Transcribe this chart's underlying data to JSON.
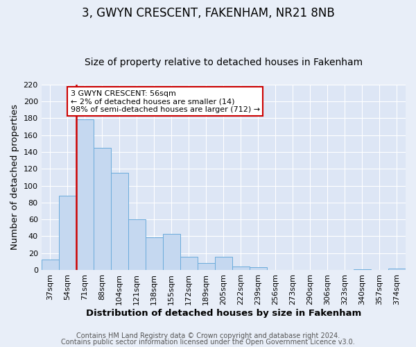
{
  "title": "3, GWYN CRESCENT, FAKENHAM, NR21 8NB",
  "subtitle": "Size of property relative to detached houses in Fakenham",
  "xlabel": "Distribution of detached houses by size in Fakenham",
  "ylabel": "Number of detached properties",
  "bins": [
    "37sqm",
    "54sqm",
    "71sqm",
    "88sqm",
    "104sqm",
    "121sqm",
    "138sqm",
    "155sqm",
    "172sqm",
    "189sqm",
    "205sqm",
    "222sqm",
    "239sqm",
    "256sqm",
    "273sqm",
    "290sqm",
    "306sqm",
    "323sqm",
    "340sqm",
    "357sqm",
    "374sqm"
  ],
  "values": [
    12,
    88,
    179,
    145,
    115,
    60,
    39,
    43,
    16,
    8,
    16,
    4,
    3,
    0,
    0,
    0,
    0,
    0,
    1,
    0,
    2
  ],
  "bar_color": "#c5d8f0",
  "bar_edge_color": "#6aabdb",
  "vline_color": "#cc0000",
  "vline_pos": 1.5,
  "ylim": [
    0,
    220
  ],
  "yticks": [
    0,
    20,
    40,
    60,
    80,
    100,
    120,
    140,
    160,
    180,
    200,
    220
  ],
  "annotation_title": "3 GWYN CRESCENT: 56sqm",
  "annotation_line1": "← 2% of detached houses are smaller (14)",
  "annotation_line2": "98% of semi-detached houses are larger (712) →",
  "annotation_box_facecolor": "#ffffff",
  "annotation_box_edgecolor": "#cc0000",
  "footer1": "Contains HM Land Registry data © Crown copyright and database right 2024.",
  "footer2": "Contains public sector information licensed under the Open Government Licence v3.0.",
  "bg_color": "#e8eef8",
  "plot_bg_color": "#dde6f5",
  "grid_color": "#ffffff",
  "title_fontsize": 12,
  "subtitle_fontsize": 10,
  "axis_label_fontsize": 9.5,
  "tick_fontsize": 8,
  "annotation_fontsize": 8,
  "footer_fontsize": 7
}
